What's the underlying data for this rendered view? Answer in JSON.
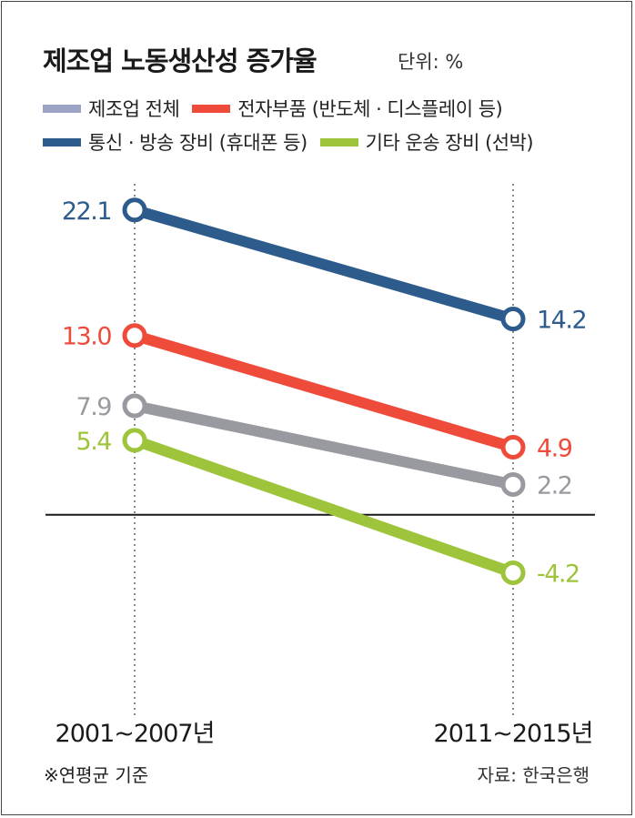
{
  "header": {
    "title": "제조업 노동생산성 증가율",
    "unit": "단위: %"
  },
  "colors": {
    "manufacturing": "#999aa0",
    "electronics": "#ef4b3b",
    "communication": "#2c5b8c",
    "transport": "#9dc43a"
  },
  "legend": [
    {
      "label": "제조업 전체",
      "color": "#9ca3c4"
    },
    {
      "label": "전자부품 (반도체 · 디스플레이 등)",
      "color": "#ef4b3b"
    },
    {
      "label": "통신 · 방송 장비 (휴대폰 등)",
      "color": "#2c5b8c"
    },
    {
      "label": "기타 운송 장비 (선박)",
      "color": "#9dc43a"
    }
  ],
  "chart_data": {
    "type": "line",
    "title": "제조업 노동생산성 증가율",
    "x": [
      "2001~2007년",
      "2011~2015년"
    ],
    "series": [
      {
        "name": "통신 · 방송 장비 (휴대폰 등)",
        "values": [
          22.1,
          14.2
        ],
        "labels": [
          "22.1",
          "14.2"
        ],
        "color": "#2c5b8c"
      },
      {
        "name": "전자부품 (반도체 · 디스플레이 등)",
        "values": [
          13.0,
          4.9
        ],
        "labels": [
          "13.0",
          "4.9"
        ],
        "color": "#ef4b3b"
      },
      {
        "name": "제조업 전체",
        "values": [
          7.9,
          2.2
        ],
        "labels": [
          "7.9",
          "2.2"
        ],
        "color": "#999aa0"
      },
      {
        "name": "기타 운송 장비 (선박)",
        "values": [
          5.4,
          -4.2
        ],
        "labels": [
          "5.4",
          "-4.2"
        ],
        "color": "#9dc43a"
      }
    ],
    "ylim": [
      -14,
      24
    ],
    "zero_line": true,
    "grid": false,
    "legend_position": "top-left"
  },
  "footer": {
    "note": "※연평균 기준",
    "source": "자료: 한국은행"
  }
}
